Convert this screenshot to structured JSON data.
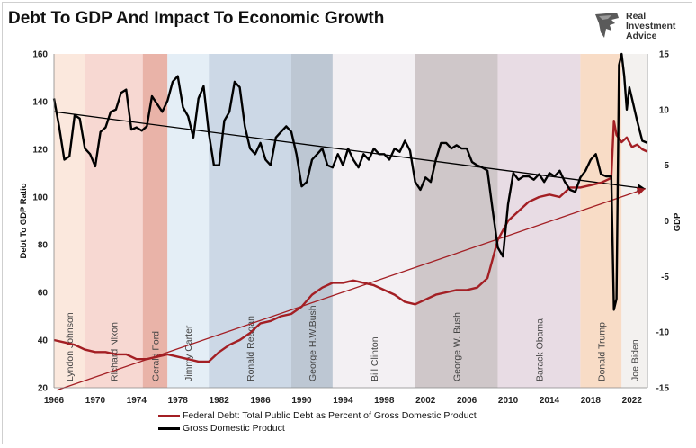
{
  "title": "Debt To GDP And Impact To Economic Growth",
  "logo": {
    "lines": [
      "Real",
      "Investment",
      "Advice"
    ]
  },
  "chart_data": {
    "type": "line",
    "x_range": [
      1966,
      2023.5
    ],
    "x_ticks": [
      1966,
      1970,
      1974,
      1978,
      1982,
      1986,
      1990,
      1994,
      1998,
      2002,
      2006,
      2010,
      2014,
      2018,
      2022
    ],
    "y_left": {
      "label": "Debt To GDP Ratio",
      "range": [
        20,
        160
      ],
      "ticks": [
        20,
        40,
        60,
        80,
        100,
        120,
        140,
        160
      ]
    },
    "y_right": {
      "label": "GDP",
      "range": [
        -15,
        15
      ],
      "ticks": [
        -15,
        -10,
        -5,
        0,
        5,
        10,
        15
      ]
    },
    "grid": false,
    "legend_position": "bottom",
    "presidencies": [
      {
        "name": "Lyndon Johnson",
        "start": 1966,
        "end": 1969,
        "color": "#fbe8dd"
      },
      {
        "name": "Richard Nixon",
        "start": 1969,
        "end": 1974.6,
        "color": "#f7d8d2"
      },
      {
        "name": "Gerald Ford",
        "start": 1974.6,
        "end": 1977,
        "color": "#e9b3a8"
      },
      {
        "name": "Jimmy Carter",
        "start": 1977,
        "end": 1981,
        "color": "#e4eef6"
      },
      {
        "name": "Ronald Reagan",
        "start": 1981,
        "end": 1989,
        "color": "#ccd8e6"
      },
      {
        "name": "George H.W.Bush",
        "start": 1989,
        "end": 1993,
        "color": "#bdc7d3"
      },
      {
        "name": "Bill Clinton",
        "start": 1993,
        "end": 2001,
        "color": "#f3f0f3"
      },
      {
        "name": "George W. Bush",
        "start": 2001,
        "end": 2009,
        "color": "#cfc7c9"
      },
      {
        "name": "Barack Obama",
        "start": 2009,
        "end": 2017,
        "color": "#e8dce4"
      },
      {
        "name": "Donald Trump",
        "start": 2017,
        "end": 2021,
        "color": "#f8dcc6"
      },
      {
        "name": "Joe Biden",
        "start": 2021,
        "end": 2023.5,
        "color": "#f3f1ef"
      }
    ],
    "series": [
      {
        "name": "Federal Debt: Total Public Debt as Percent of Gross Domestic Product",
        "axis": "left",
        "color": "#a31f24",
        "x": [
          1966,
          1967,
          1968,
          1969,
          1970,
          1971,
          1972,
          1973,
          1974,
          1975,
          1976,
          1977,
          1978,
          1979,
          1980,
          1981,
          1982,
          1983,
          1984,
          1985,
          1986,
          1987,
          1988,
          1989,
          1990,
          1991,
          1992,
          1993,
          1994,
          1995,
          1996,
          1997,
          1998,
          1999,
          2000,
          2001,
          2002,
          2003,
          2004,
          2005,
          2006,
          2007,
          2008,
          2009,
          2010,
          2011,
          2012,
          2013,
          2014,
          2015,
          2016,
          2017,
          2018,
          2019,
          2020,
          2020.25,
          2020.5,
          2021,
          2021.5,
          2022,
          2022.5,
          2023,
          2023.5
        ],
        "values": [
          40,
          39,
          38,
          36,
          35,
          35,
          34,
          34,
          32,
          32,
          33,
          34,
          33,
          32,
          31,
          31,
          35,
          38,
          40,
          43,
          47,
          48,
          50,
          51,
          54,
          59,
          62,
          64,
          64,
          65,
          64,
          63,
          61,
          59,
          56,
          55,
          57,
          59,
          60,
          61,
          61,
          62,
          66,
          82,
          90,
          94,
          98,
          100,
          101,
          100,
          104,
          104,
          105,
          106,
          108,
          132,
          126,
          123,
          125,
          121,
          122,
          120,
          119
        ]
      },
      {
        "name": "Gross Domestic Product",
        "axis": "right",
        "color": "#000000",
        "x": [
          1966,
          1966.5,
          1967,
          1967.5,
          1968,
          1968.5,
          1969,
          1969.5,
          1970,
          1970.5,
          1971,
          1971.5,
          1972,
          1972.5,
          1973,
          1973.5,
          1974,
          1974.5,
          1975,
          1975.5,
          1976,
          1976.5,
          1977,
          1977.5,
          1978,
          1978.5,
          1979,
          1979.5,
          1980,
          1980.5,
          1981,
          1981.5,
          1982,
          1982.5,
          1983,
          1983.5,
          1984,
          1984.5,
          1985,
          1985.5,
          1986,
          1986.5,
          1987,
          1987.5,
          1988,
          1988.5,
          1989,
          1989.5,
          1990,
          1990.5,
          1991,
          1991.5,
          1992,
          1992.5,
          1993,
          1993.5,
          1994,
          1994.5,
          1995,
          1995.5,
          1996,
          1996.5,
          1997,
          1997.5,
          1998,
          1998.5,
          1999,
          1999.5,
          2000,
          2000.5,
          2001,
          2001.5,
          2002,
          2002.5,
          2003,
          2003.5,
          2004,
          2004.5,
          2005,
          2005.5,
          2006,
          2006.5,
          2007,
          2007.5,
          2008,
          2008.5,
          2009,
          2009.5,
          2010,
          2010.5,
          2011,
          2011.5,
          2012,
          2012.5,
          2013,
          2013.5,
          2014,
          2014.5,
          2015,
          2015.5,
          2016,
          2016.5,
          2017,
          2017.5,
          2018,
          2018.5,
          2019,
          2019.5,
          2020,
          2020.25,
          2020.5,
          2020.75,
          2021,
          2021.25,
          2021.5,
          2021.75,
          2022,
          2022.5,
          2023,
          2023.5
        ],
        "values": [
          11,
          8.5,
          5.5,
          5.8,
          9.5,
          9.2,
          6.5,
          6,
          4.9,
          8,
          8.4,
          9.8,
          10,
          11.5,
          11.8,
          8.2,
          8.4,
          8.1,
          8.5,
          11.2,
          10.5,
          9.8,
          10.8,
          12.5,
          13,
          10.2,
          9.4,
          7.5,
          11,
          12.1,
          7.9,
          5,
          5,
          9,
          9.8,
          12.5,
          12,
          8.5,
          6.5,
          6,
          7,
          5.5,
          5,
          7.5,
          8,
          8.5,
          8,
          6,
          3.1,
          3.5,
          5.5,
          6,
          6.5,
          5,
          4.8,
          6,
          5,
          6.5,
          5.5,
          4.8,
          6,
          5.5,
          6.5,
          6,
          6,
          5.5,
          6.5,
          6.2,
          7.2,
          6.3,
          3.5,
          2.8,
          3.9,
          3.5,
          5.5,
          7,
          7,
          6.5,
          6.8,
          6.5,
          6.5,
          5.3,
          5,
          4.8,
          4.5,
          1,
          -2.4,
          -3.2,
          1.5,
          4.3,
          3.7,
          4,
          4,
          3.7,
          4.2,
          3.5,
          4.3,
          4,
          4.5,
          3.5,
          2.8,
          2.6,
          3.9,
          4.5,
          5.5,
          6,
          4.2,
          4,
          4,
          -8,
          -7,
          14,
          15,
          13,
          10,
          12,
          11,
          9,
          7.2,
          7
        ]
      }
    ],
    "trendlines": [
      {
        "axis": "left",
        "color": "#000000",
        "x": [
          1966,
          2023.3
        ],
        "values": [
          135.8,
          103.5
        ]
      },
      {
        "axis": "left",
        "color": "#a31f24",
        "x": [
          1966.3,
          2023.3
        ],
        "values": [
          19,
          103.5
        ]
      }
    ]
  }
}
